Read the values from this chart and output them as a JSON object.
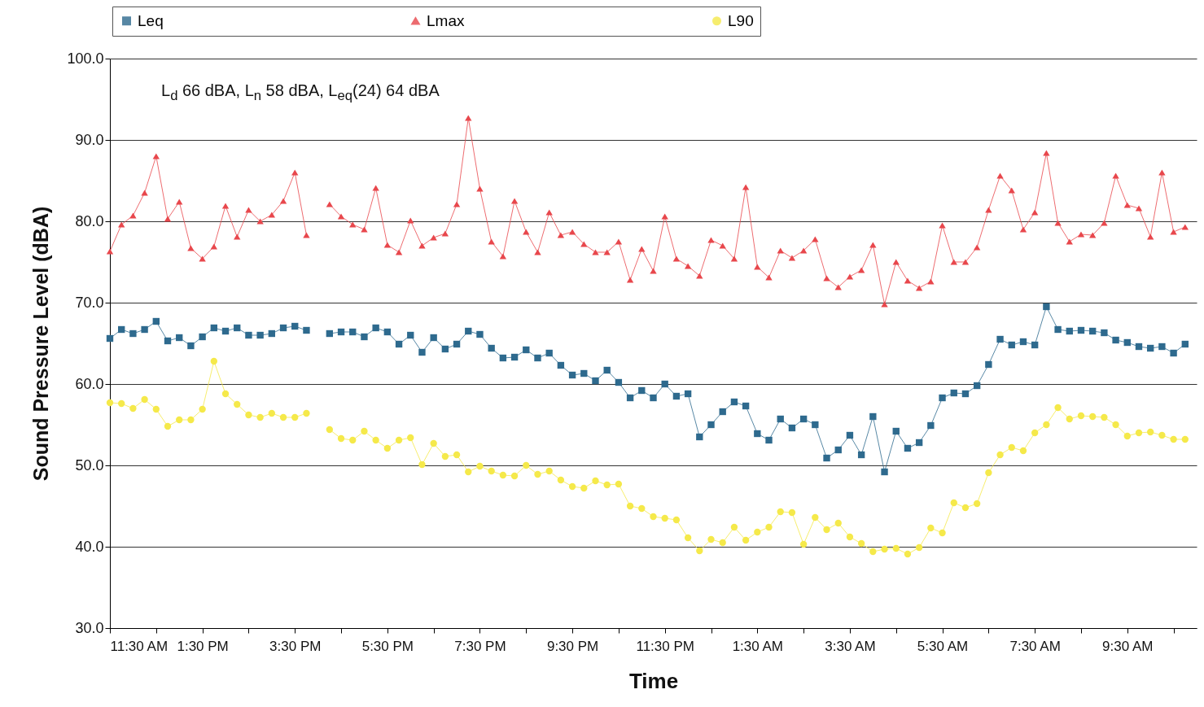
{
  "chart_data": {
    "type": "line",
    "xlabel": "Time",
    "ylabel": "Sound Pressure Level (dBA)",
    "legend": "top",
    "grid": "y",
    "line_style": "solid",
    "annotations": [
      "L$_{d}$  66 dBA, L$_{n}$ 58 dBA, L$_{eq}$(24) 64 dBA"
    ],
    "xlim": [
      "--01-01T11:30",
      "--01-02T11:00"
    ],
    "ylim": [
      30,
      100
    ],
    "xticks": [
      {
        "value": "--01-01T11:30",
        "label": "11:30 AM"
      },
      {
        "value": "--01-01T12:30",
        "label": null
      },
      {
        "value": "--01-01T13:30",
        "label": "1:30 PM"
      },
      {
        "value": "--01-01T14:30",
        "label": null
      },
      {
        "value": "--01-01T15:30",
        "label": "3:30 PM"
      },
      {
        "value": "--01-01T16:30",
        "label": null
      },
      {
        "value": "--01-01T17:30",
        "label": "5:30 PM"
      },
      {
        "value": "--01-01T18:30",
        "label": null
      },
      {
        "value": "--01-01T19:30",
        "label": "7:30 PM"
      },
      {
        "value": "--01-01T20:30",
        "label": null
      },
      {
        "value": "--01-01T21:30",
        "label": "9:30 PM"
      },
      {
        "value": "--01-01T22:30",
        "label": null
      },
      {
        "value": "--01-01T23:30",
        "label": "11:30 PM"
      },
      {
        "value": "--01-02T00:30",
        "label": null
      },
      {
        "value": "--01-02T01:30",
        "label": "1:30 AM"
      },
      {
        "value": "--01-02T02:30",
        "label": null
      },
      {
        "value": "--01-02T03:30",
        "label": "3:30 AM"
      },
      {
        "value": "--01-02T04:30",
        "label": null
      },
      {
        "value": "--01-02T05:30",
        "label": "5:30 AM"
      },
      {
        "value": "--01-02T06:30",
        "label": null
      },
      {
        "value": "--01-02T07:30",
        "label": "7:30 AM"
      },
      {
        "value": "--01-02T08:30",
        "label": null
      },
      {
        "value": "--01-02T09:30",
        "label": "9:30 AM"
      },
      {
        "value": "--01-02T10:30",
        "label": null
      }
    ],
    "yticks": [
      {
        "value": 30,
        "label": "30.0"
      },
      {
        "value": 40,
        "label": "40.0"
      },
      {
        "value": 50,
        "label": "50.0"
      },
      {
        "value": 60,
        "label": "60.0"
      },
      {
        "value": 70,
        "label": "70.0"
      },
      {
        "value": 80,
        "label": "80.0"
      },
      {
        "value": 90,
        "label": "90.0"
      },
      {
        "value": 100,
        "label": "100.0"
      }
    ],
    "x": [
      "--01-01T11:30",
      "--01-01T11:45",
      "--01-01T12:00",
      "--01-01T12:15",
      "--01-01T12:30",
      "--01-01T12:45",
      "--01-01T13:00",
      "--01-01T13:15",
      "--01-01T13:30",
      "--01-01T13:45",
      "--01-01T14:00",
      "--01-01T14:15",
      "--01-01T14:30",
      "--01-01T14:45",
      "--01-01T15:00",
      "--01-01T15:15",
      "--01-01T15:30",
      "--01-01T15:45",
      "--01-01T16:00",
      "--01-01T16:15",
      "--01-01T16:30",
      "--01-01T16:45",
      "--01-01T17:00",
      "--01-01T17:15",
      "--01-01T17:30",
      "--01-01T17:45",
      "--01-01T18:00",
      "--01-01T18:15",
      "--01-01T18:30",
      "--01-01T18:45",
      "--01-01T19:00",
      "--01-01T19:15",
      "--01-01T19:30",
      "--01-01T19:45",
      "--01-01T20:00",
      "--01-01T20:15",
      "--01-01T20:30",
      "--01-01T20:45",
      "--01-01T21:00",
      "--01-01T21:15",
      "--01-01T21:30",
      "--01-01T21:45",
      "--01-01T22:00",
      "--01-01T22:15",
      "--01-01T22:30",
      "--01-01T22:45",
      "--01-01T23:00",
      "--01-01T23:15",
      "--01-01T23:30",
      "--01-01T23:45",
      "--01-02T00:00",
      "--01-02T00:15",
      "--01-02T00:30",
      "--01-02T00:45",
      "--01-02T01:00",
      "--01-02T01:15",
      "--01-02T01:30",
      "--01-02T01:45",
      "--01-02T02:00",
      "--01-02T02:15",
      "--01-02T02:30",
      "--01-02T02:45",
      "--01-02T03:00",
      "--01-02T03:15",
      "--01-02T03:30",
      "--01-02T03:45",
      "--01-02T04:00",
      "--01-02T04:15",
      "--01-02T04:30",
      "--01-02T04:45",
      "--01-02T05:00",
      "--01-02T05:15",
      "--01-02T05:30",
      "--01-02T05:45",
      "--01-02T06:00",
      "--01-02T06:15",
      "--01-02T06:30",
      "--01-02T06:45",
      "--01-02T07:00",
      "--01-02T07:15",
      "--01-02T07:30",
      "--01-02T07:45",
      "--01-02T08:00",
      "--01-02T08:15",
      "--01-02T08:30",
      "--01-02T08:45",
      "--01-02T09:00",
      "--01-02T09:15",
      "--01-02T09:30",
      "--01-02T09:45",
      "--01-02T10:00",
      "--01-02T10:15",
      "--01-02T10:30",
      "--01-02T10:45"
    ],
    "series": [
      {
        "name": "Leq",
        "color": "#2e6a8e",
        "marker": "square",
        "values": [
          65.6,
          66.7,
          66.2,
          66.7,
          67.7,
          65.3,
          65.7,
          64.7,
          65.8,
          66.9,
          66.5,
          66.9,
          66.0,
          66.0,
          66.2,
          66.9,
          67.1,
          66.6,
          null,
          66.2,
          66.4,
          66.4,
          65.8,
          66.9,
          66.4,
          64.9,
          66.0,
          63.9,
          65.7,
          64.3,
          64.9,
          66.5,
          66.1,
          64.4,
          63.2,
          63.3,
          64.2,
          63.2,
          63.8,
          62.3,
          61.1,
          61.3,
          60.4,
          61.7,
          60.2,
          58.3,
          59.2,
          58.3,
          60.0,
          58.5,
          58.8,
          53.5,
          55.0,
          56.6,
          57.8,
          57.3,
          53.9,
          53.1,
          55.7,
          54.6,
          55.7,
          55.0,
          50.9,
          51.9,
          53.7,
          51.3,
          56.0,
          49.2,
          54.2,
          52.1,
          52.8,
          54.9,
          58.3,
          58.9,
          58.8,
          59.8,
          62.4,
          65.5,
          64.8,
          65.2,
          64.8,
          69.5,
          66.7,
          66.5,
          66.6,
          66.5,
          66.3,
          65.4,
          65.1,
          64.6,
          64.4,
          64.6,
          63.8,
          64.9
        ]
      },
      {
        "name": "Lmax",
        "color": "#e8474c",
        "marker": "triangle",
        "values": [
          76.3,
          79.6,
          80.7,
          83.5,
          88.0,
          80.3,
          82.4,
          76.7,
          75.4,
          76.9,
          81.9,
          78.1,
          81.4,
          80.0,
          80.8,
          82.5,
          86.0,
          78.3,
          null,
          82.1,
          80.6,
          79.6,
          79.0,
          84.1,
          77.1,
          76.2,
          80.1,
          77.0,
          78.0,
          78.5,
          82.1,
          92.7,
          84.0,
          77.5,
          75.7,
          82.5,
          78.7,
          76.2,
          81.1,
          78.3,
          78.7,
          77.2,
          76.2,
          76.2,
          77.5,
          72.8,
          76.6,
          73.9,
          80.6,
          75.4,
          74.5,
          73.3,
          77.7,
          77.0,
          75.4,
          84.2,
          74.4,
          73.1,
          76.4,
          75.5,
          76.4,
          77.8,
          73.0,
          71.9,
          73.2,
          74.0,
          77.1,
          69.8,
          75.0,
          72.7,
          71.8,
          72.6,
          79.5,
          75.0,
          75.0,
          76.8,
          81.4,
          85.6,
          83.8,
          79.0,
          81.1,
          88.4,
          79.8,
          77.5,
          78.4,
          78.3,
          79.8,
          85.6,
          82.0,
          81.6,
          78.1,
          86.0,
          78.7,
          79.3
        ]
      },
      {
        "name": "L90",
        "color": "#f5e94a",
        "marker": "circle",
        "values": [
          57.7,
          57.6,
          57.0,
          58.1,
          56.9,
          54.8,
          55.6,
          55.6,
          56.9,
          62.8,
          58.8,
          57.5,
          56.2,
          55.9,
          56.4,
          55.9,
          55.9,
          56.4,
          null,
          54.4,
          53.3,
          53.1,
          54.2,
          53.1,
          52.1,
          53.1,
          53.4,
          50.1,
          52.7,
          51.1,
          51.3,
          49.2,
          49.9,
          49.3,
          48.8,
          48.7,
          50.0,
          48.9,
          49.3,
          48.2,
          47.4,
          47.2,
          48.1,
          47.6,
          47.7,
          45.0,
          44.7,
          43.7,
          43.5,
          43.3,
          41.1,
          39.5,
          40.9,
          40.5,
          42.4,
          40.8,
          41.8,
          42.4,
          44.3,
          44.2,
          40.3,
          43.6,
          42.1,
          42.9,
          41.2,
          40.4,
          39.4,
          39.7,
          39.8,
          39.1,
          39.9,
          42.3,
          41.7,
          45.4,
          44.8,
          45.3,
          49.1,
          51.3,
          52.2,
          51.8,
          54.0,
          55.0,
          57.1,
          55.7,
          56.1,
          56.0,
          55.9,
          55.0,
          53.6,
          54.0,
          54.1,
          53.7,
          53.2,
          53.2
        ]
      }
    ]
  }
}
